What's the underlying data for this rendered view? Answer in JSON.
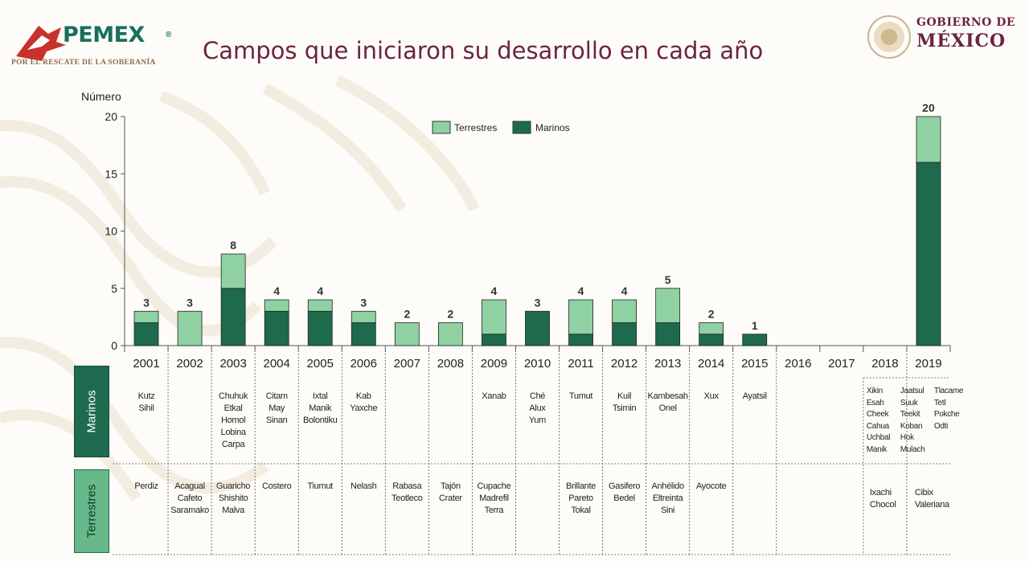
{
  "header": {
    "brand": "PEMEX",
    "brand_mark": "®",
    "slogan": "POR EL RESCATE DE LA SOBERANÍA",
    "title": "Campos que iniciaron su desarrollo en cada año",
    "gov_line1": "GOBIERNO DE",
    "gov_line2": "MÉXICO"
  },
  "colors": {
    "terrestres": "#8fd1a2",
    "marinos": "#1d6b4c",
    "title": "#6b2440",
    "pemex": "#19705a"
  },
  "chart_data": {
    "type": "bar",
    "stacked": true,
    "ylabel": "Número",
    "ylim": [
      0,
      20
    ],
    "yticks": [
      0,
      5,
      10,
      15,
      20
    ],
    "grid": false,
    "legend_position": "top-center",
    "categories": [
      "2001",
      "2002",
      "2003",
      "2004",
      "2005",
      "2006",
      "2007",
      "2008",
      "2009",
      "2010",
      "2011",
      "2012",
      "2013",
      "2014",
      "2015",
      "2016",
      "2017",
      "2018",
      "2019"
    ],
    "series": [
      {
        "name": "Marinos",
        "color": "#1d6b4c",
        "values": [
          2,
          0,
          5,
          3,
          3,
          2,
          0,
          0,
          1,
          3,
          1,
          2,
          2,
          1,
          1,
          0,
          0,
          0,
          16
        ]
      },
      {
        "name": "Terrestres",
        "color": "#8fd1a2",
        "values": [
          1,
          3,
          3,
          1,
          1,
          1,
          2,
          2,
          3,
          0,
          3,
          2,
          3,
          1,
          0,
          0,
          0,
          0,
          4
        ]
      }
    ],
    "totals": [
      "3",
      "3",
      "8",
      "4",
      "4",
      "3",
      "2",
      "2",
      "4",
      "3",
      "4",
      "4",
      "5",
      "2",
      "1",
      "",
      "",
      "",
      "20"
    ],
    "legend": [
      "Terrestres",
      "Marinos"
    ]
  },
  "table": {
    "marinos_label": "Marinos",
    "terrestres_label": "Terrestres",
    "marinos": [
      "Kutz\nSihil",
      "",
      "Chuhuk\nEtkal\nHomol\nLobina\nCarpa",
      "Citam\nMay\nSinan",
      "Ixtal\nManik\nBolontiku",
      "Kab\nYaxche",
      "",
      "",
      "Xanab",
      "Ché\nAlux\nYum",
      "Tumut",
      "Kuil\nTsimin",
      "Kambesah\nOnel",
      "Xux",
      "Ayatsil",
      "",
      "",
      "",
      ""
    ],
    "marinos_2019_col1": "Xikin\nEsah\nCheek\nCahua\nUchbal\nManik",
    "marinos_2019_col2": "Jaatsul\nSuuk\nTeekit\nKoban\nHok\nMulach",
    "marinos_2019_col3": "Tlacame\nTetl\nPokche\nOdti",
    "terrestres": [
      "Perdiz",
      "Acagual\nCafeto\nSaramako",
      "Guaricho\nShishito\nMalva",
      "Costero",
      "Tiumut",
      "Nelash",
      "Rabasa\nTeotleco",
      "Tajón\nCrater",
      "Cupache\nMadrefil\nTerra",
      "",
      "Brillante\nPareto\nTokal",
      "Gasifero\nBedel",
      "Anhélido\nEltreinta\nSini",
      "Ayocote",
      "",
      "",
      "",
      "",
      ""
    ],
    "terrestres_2019_col1": "Ixachi\nChocol",
    "terrestres_2019_col2": "Cibix\nValeriana"
  }
}
